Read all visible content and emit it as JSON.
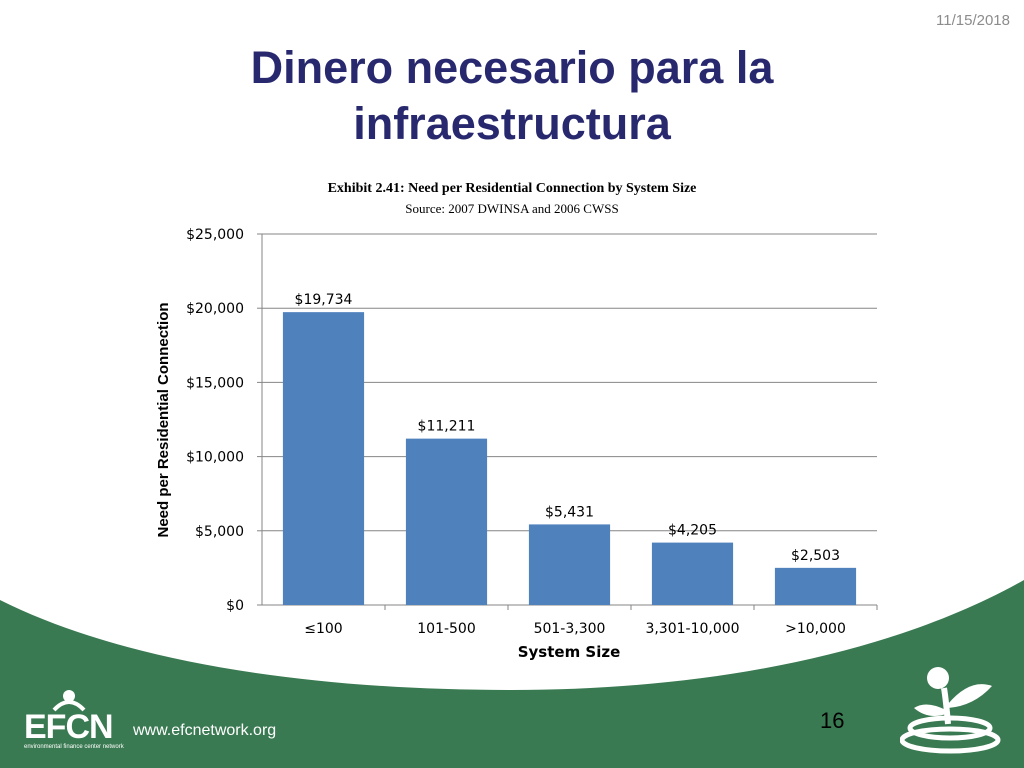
{
  "date": "11/15/2018",
  "title_lines": [
    "Dinero necesario para la",
    "infraestructura"
  ],
  "footer": {
    "url": "www.efcnetwork.org",
    "page_number": "16",
    "logo_text": "EFCN",
    "logo_tagline": "environmental finance center network"
  },
  "colors": {
    "title": "#28286e",
    "bar": "#4f81bd",
    "footer_green": "#3a7a52"
  },
  "chart_data": {
    "type": "bar",
    "title": "Exhibit 2.41: Need per Residential Connection by System Size",
    "subtitle": "Source: 2007 DWINSA and 2006 CWSS",
    "xlabel": "System Size",
    "ylabel": "Need per Residential Connection",
    "categories": [
      "≤100",
      "101-500",
      "501-3,300",
      "3,301-10,000",
      ">10,000"
    ],
    "values": [
      19734,
      11211,
      5431,
      4205,
      2503
    ],
    "data_labels": [
      "$19,734",
      "$11,211",
      "$5,431",
      "$4,205",
      "$2,503"
    ],
    "ylim": [
      0,
      25000
    ],
    "yticks": [
      0,
      5000,
      10000,
      15000,
      20000,
      25000
    ],
    "ytick_labels": [
      "$0",
      "$5,000",
      "$10,000",
      "$15,000",
      "$20,000",
      "$25,000"
    ],
    "grid": true,
    "legend": "none"
  }
}
